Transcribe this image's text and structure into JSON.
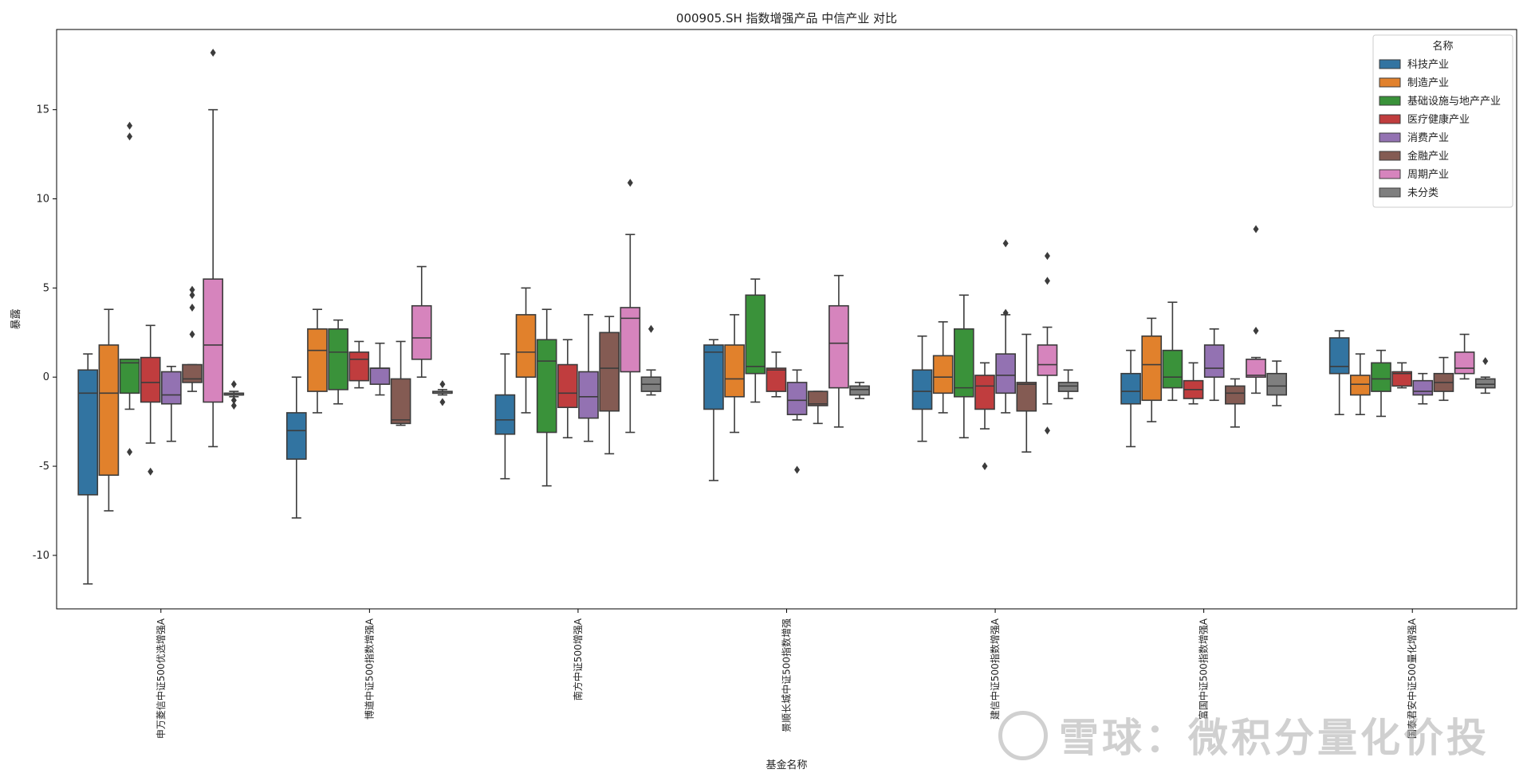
{
  "chart_data": {
    "type": "boxplot",
    "title": "000905.SH 指数增强产品 中信产业 对比",
    "xlabel": "基金名称",
    "ylabel": "暴露",
    "ylim": [
      -13,
      19.5
    ],
    "yticks": [
      -10,
      -5,
      0,
      5,
      10,
      15
    ],
    "grid": false,
    "legend": {
      "title": "名称",
      "position": "top-right",
      "entries": [
        "科技产业",
        "制造产业",
        "基础设施与地产产业",
        "医疗健康产业",
        "消费产业",
        "金融产业",
        "周期产业",
        "未分类"
      ]
    },
    "colors": [
      "#3274a1",
      "#e1812c",
      "#3a923a",
      "#c03d3e",
      "#9372b2",
      "#845b53",
      "#d684bd",
      "#7f7f7f"
    ],
    "categories": [
      "申万菱信中证500优选增强A",
      "博道中证500指数增强A",
      "南方中证500增强A",
      "景顺长城中证500指数增强",
      "建信中证500指数增强A",
      "富国中证500指数增强A",
      "国泰君安中证500量化增强A"
    ],
    "series": [
      {
        "name": "科技产业",
        "boxes": [
          {
            "whislo": -11.6,
            "q1": -6.6,
            "med": -0.9,
            "q3": 0.4,
            "whishi": 1.3,
            "fliers": []
          },
          {
            "whislo": -7.9,
            "q1": -4.6,
            "med": -3.0,
            "q3": -2.0,
            "whishi": 0.0,
            "fliers": []
          },
          {
            "whislo": -5.7,
            "q1": -3.2,
            "med": -2.4,
            "q3": -1.0,
            "whishi": 1.3,
            "fliers": []
          },
          {
            "whislo": -5.8,
            "q1": -1.8,
            "med": 1.4,
            "q3": 1.8,
            "whishi": 2.1,
            "fliers": []
          },
          {
            "whislo": -3.6,
            "q1": -1.8,
            "med": -0.8,
            "q3": 0.4,
            "whishi": 2.3,
            "fliers": []
          },
          {
            "whislo": -3.9,
            "q1": -1.5,
            "med": -0.8,
            "q3": 0.2,
            "whishi": 1.5,
            "fliers": []
          },
          {
            "whislo": -2.1,
            "q1": 0.2,
            "med": 0.6,
            "q3": 2.2,
            "whishi": 2.6,
            "fliers": []
          }
        ]
      },
      {
        "name": "制造产业",
        "boxes": [
          {
            "whislo": -7.5,
            "q1": -5.5,
            "med": -0.9,
            "q3": 1.8,
            "whishi": 3.8,
            "fliers": []
          },
          {
            "whislo": -2.0,
            "q1": -0.8,
            "med": 1.5,
            "q3": 2.7,
            "whishi": 3.8,
            "fliers": []
          },
          {
            "whislo": -2.0,
            "q1": 0.0,
            "med": 1.4,
            "q3": 3.5,
            "whishi": 5.0,
            "fliers": []
          },
          {
            "whislo": -3.1,
            "q1": -1.1,
            "med": -0.1,
            "q3": 1.8,
            "whishi": 3.5,
            "fliers": []
          },
          {
            "whislo": -2.0,
            "q1": -0.9,
            "med": 0.0,
            "q3": 1.2,
            "whishi": 3.1,
            "fliers": []
          },
          {
            "whislo": -2.5,
            "q1": -1.3,
            "med": 0.7,
            "q3": 2.3,
            "whishi": 3.3,
            "fliers": []
          },
          {
            "whislo": -2.1,
            "q1": -1.0,
            "med": -0.4,
            "q3": 0.1,
            "whishi": 1.3,
            "fliers": []
          }
        ]
      },
      {
        "name": "基础设施与地产产业",
        "boxes": [
          {
            "whislo": -1.8,
            "q1": -0.9,
            "med": 0.8,
            "q3": 1.0,
            "whishi": 1.0,
            "fliers": [
              14.1,
              13.5,
              -4.2
            ]
          },
          {
            "whislo": -1.5,
            "q1": -0.7,
            "med": 1.4,
            "q3": 2.7,
            "whishi": 3.2,
            "fliers": []
          },
          {
            "whislo": -6.1,
            "q1": -3.1,
            "med": 0.9,
            "q3": 2.1,
            "whishi": 3.8,
            "fliers": []
          },
          {
            "whislo": -1.4,
            "q1": 0.2,
            "med": 0.6,
            "q3": 4.6,
            "whishi": 5.5,
            "fliers": []
          },
          {
            "whislo": -3.4,
            "q1": -1.1,
            "med": -0.6,
            "q3": 2.7,
            "whishi": 4.6,
            "fliers": []
          },
          {
            "whislo": -1.3,
            "q1": -0.6,
            "med": 0.0,
            "q3": 1.5,
            "whishi": 4.2,
            "fliers": []
          },
          {
            "whislo": -2.2,
            "q1": -0.8,
            "med": -0.1,
            "q3": 0.8,
            "whishi": 1.5,
            "fliers": []
          }
        ]
      },
      {
        "name": "医疗健康产业",
        "boxes": [
          {
            "whislo": -3.7,
            "q1": -1.4,
            "med": -0.3,
            "q3": 1.1,
            "whishi": 2.9,
            "fliers": [
              -5.3
            ]
          },
          {
            "whislo": -0.6,
            "q1": -0.2,
            "med": 1.0,
            "q3": 1.4,
            "whishi": 2.0,
            "fliers": []
          },
          {
            "whislo": -3.4,
            "q1": -1.7,
            "med": -0.9,
            "q3": 0.7,
            "whishi": 2.1,
            "fliers": []
          },
          {
            "whislo": -1.1,
            "q1": -0.8,
            "med": 0.4,
            "q3": 0.5,
            "whishi": 1.4,
            "fliers": []
          },
          {
            "whislo": -2.9,
            "q1": -1.8,
            "med": -0.5,
            "q3": 0.1,
            "whishi": 0.8,
            "fliers": [
              -5.0
            ]
          },
          {
            "whislo": -1.5,
            "q1": -1.2,
            "med": -0.7,
            "q3": -0.2,
            "whishi": 0.8,
            "fliers": []
          },
          {
            "whislo": -0.6,
            "q1": -0.5,
            "med": 0.2,
            "q3": 0.3,
            "whishi": 0.8,
            "fliers": []
          }
        ]
      },
      {
        "name": "消费产业",
        "boxes": [
          {
            "whislo": -3.6,
            "q1": -1.5,
            "med": -1.0,
            "q3": 0.3,
            "whishi": 0.6,
            "fliers": []
          },
          {
            "whislo": -1.0,
            "q1": -0.4,
            "med": 0.5,
            "q3": 0.5,
            "whishi": 1.9,
            "fliers": []
          },
          {
            "whislo": -3.6,
            "q1": -2.3,
            "med": -1.1,
            "q3": 0.3,
            "whishi": 3.5,
            "fliers": []
          },
          {
            "whislo": -2.4,
            "q1": -2.1,
            "med": -1.3,
            "q3": -0.3,
            "whishi": 0.4,
            "fliers": [
              -5.2
            ]
          },
          {
            "whislo": -2.0,
            "q1": -0.9,
            "med": 0.1,
            "q3": 1.3,
            "whishi": 3.5,
            "fliers": [
              3.6,
              7.5
            ]
          },
          {
            "whislo": -1.3,
            "q1": 0.0,
            "med": 0.5,
            "q3": 1.8,
            "whishi": 2.7,
            "fliers": []
          },
          {
            "whislo": -1.5,
            "q1": -1.0,
            "med": -0.8,
            "q3": -0.2,
            "whishi": 0.2,
            "fliers": []
          }
        ]
      },
      {
        "name": "金融产业",
        "boxes": [
          {
            "whislo": -0.8,
            "q1": -0.3,
            "med": -0.1,
            "q3": 0.7,
            "whishi": 0.7,
            "fliers": [
              4.9,
              4.6,
              3.9,
              2.4
            ]
          },
          {
            "whislo": -2.7,
            "q1": -2.6,
            "med": -2.4,
            "q3": -0.1,
            "whishi": 2.0,
            "fliers": []
          },
          {
            "whislo": -4.3,
            "q1": -1.9,
            "med": 0.5,
            "q3": 2.5,
            "whishi": 3.4,
            "fliers": []
          },
          {
            "whislo": -2.6,
            "q1": -1.6,
            "med": -1.5,
            "q3": -0.8,
            "whishi": -0.8,
            "fliers": []
          },
          {
            "whislo": -4.2,
            "q1": -1.9,
            "med": -0.4,
            "q3": -0.3,
            "whishi": 2.4,
            "fliers": []
          },
          {
            "whislo": -2.8,
            "q1": -1.5,
            "med": -0.9,
            "q3": -0.5,
            "whishi": -0.1,
            "fliers": []
          },
          {
            "whislo": -1.3,
            "q1": -0.8,
            "med": -0.3,
            "q3": 0.2,
            "whishi": 1.1,
            "fliers": []
          }
        ]
      },
      {
        "name": "周期产业",
        "boxes": [
          {
            "whislo": -3.9,
            "q1": -1.4,
            "med": 1.8,
            "q3": 5.5,
            "whishi": 15.0,
            "fliers": [
              18.2
            ]
          },
          {
            "whislo": 0.0,
            "q1": 1.0,
            "med": 2.2,
            "q3": 4.0,
            "whishi": 6.2,
            "fliers": []
          },
          {
            "whislo": -3.1,
            "q1": 0.3,
            "med": 3.3,
            "q3": 3.9,
            "whishi": 8.0,
            "fliers": [
              10.9
            ]
          },
          {
            "whislo": -2.8,
            "q1": -0.6,
            "med": 1.9,
            "q3": 4.0,
            "whishi": 5.7,
            "fliers": []
          },
          {
            "whislo": -1.5,
            "q1": 0.1,
            "med": 0.7,
            "q3": 1.8,
            "whishi": 2.8,
            "fliers": [
              6.8,
              5.4,
              -3.0
            ]
          },
          {
            "whislo": -0.9,
            "q1": 0.0,
            "med": 0.1,
            "q3": 1.0,
            "whishi": 1.1,
            "fliers": [
              8.3,
              2.6
            ]
          },
          {
            "whislo": -0.1,
            "q1": 0.2,
            "med": 0.5,
            "q3": 1.4,
            "whishi": 2.4,
            "fliers": []
          }
        ]
      },
      {
        "name": "未分类",
        "boxes": [
          {
            "whislo": -1.1,
            "q1": -1.0,
            "med": -1.0,
            "q3": -0.9,
            "whishi": -0.8,
            "fliers": [
              -0.4,
              -1.3,
              -1.6
            ]
          },
          {
            "whislo": -1.0,
            "q1": -0.9,
            "med": -0.9,
            "q3": -0.8,
            "whishi": -0.7,
            "fliers": [
              -0.4,
              -1.4
            ]
          },
          {
            "whislo": -1.0,
            "q1": -0.8,
            "med": -0.4,
            "q3": 0.0,
            "whishi": 0.4,
            "fliers": [
              2.7
            ]
          },
          {
            "whislo": -1.2,
            "q1": -1.0,
            "med": -0.7,
            "q3": -0.5,
            "whishi": -0.3,
            "fliers": []
          },
          {
            "whislo": -1.2,
            "q1": -0.8,
            "med": -0.5,
            "q3": -0.3,
            "whishi": 0.4,
            "fliers": []
          },
          {
            "whislo": -1.6,
            "q1": -1.0,
            "med": -0.5,
            "q3": 0.2,
            "whishi": 0.9,
            "fliers": []
          },
          {
            "whislo": -0.9,
            "q1": -0.6,
            "med": -0.4,
            "q3": -0.1,
            "whishi": 0.0,
            "fliers": [
              0.9
            ]
          }
        ]
      }
    ]
  },
  "watermark": "雪球：微积分量化价投"
}
